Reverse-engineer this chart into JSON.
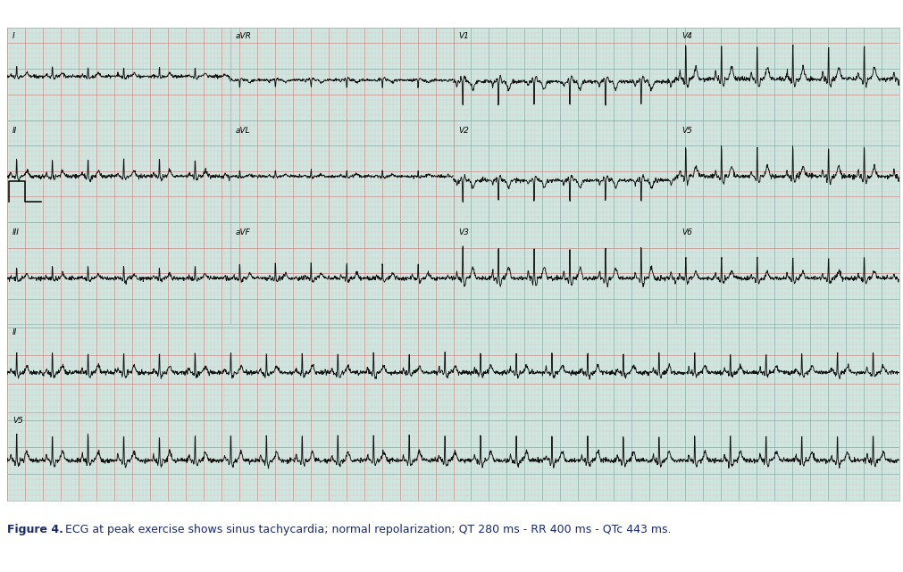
{
  "caption_bold": "Figure 4.",
  "caption_normal": " ECG at peak exercise shows sinus tachycardia; normal repolarization; QT 280 ms - RR 400 ms - QTc 443 ms.",
  "paper_color": "#cce8e0",
  "grid_minor_color": "#e8b8b8",
  "grid_major_color": "#cc7777",
  "ecg_color": "#111111",
  "fig_width": 10.12,
  "fig_height": 6.41,
  "dpi": 100,
  "caption_fontsize": 9.0,
  "heart_rate": 150,
  "row1_labels": [
    "I",
    "aVR",
    "V1",
    "V4"
  ],
  "row2_labels": [
    "II",
    "aVL",
    "V2",
    "V5"
  ],
  "row3_labels": [
    "III",
    "aVF",
    "V3",
    "V6"
  ],
  "row4_label": "II",
  "row5_label": "V5",
  "border_color": "#aaaaaa"
}
